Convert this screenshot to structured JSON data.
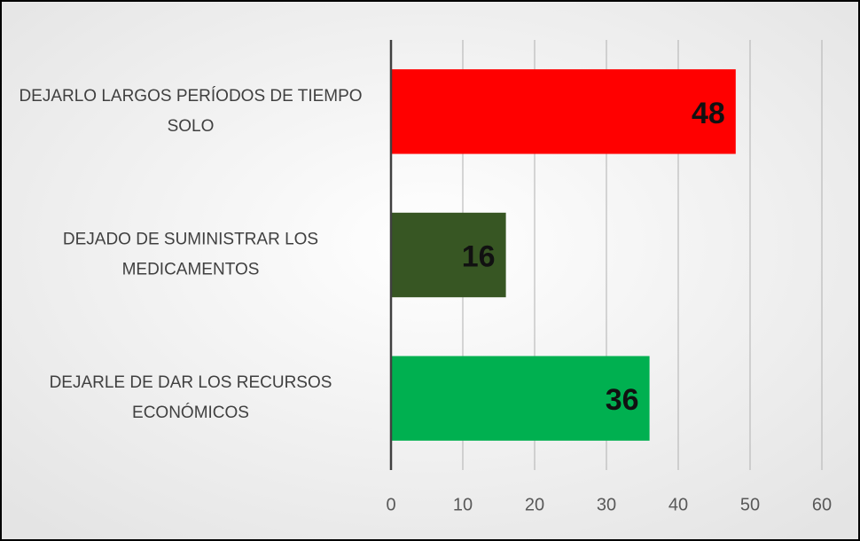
{
  "chart_data": {
    "type": "bar",
    "orientation": "horizontal",
    "categories": [
      [
        "DEJARLO LARGOS PERÍODOS DE TIEMPO",
        "SOLO"
      ],
      [
        "DEJADO DE SUMINISTRAR LOS",
        "MEDICAMENTOS"
      ],
      [
        "DEJARLE DE DAR LOS RECURSOS",
        "ECONÓMICOS"
      ]
    ],
    "values": [
      48,
      16,
      36
    ],
    "colors": [
      "#ff0000",
      "#375623",
      "#00b050"
    ],
    "xlim": [
      0,
      60
    ],
    "xticks": [
      0,
      10,
      20,
      30,
      40,
      50,
      60
    ],
    "grid": true
  }
}
